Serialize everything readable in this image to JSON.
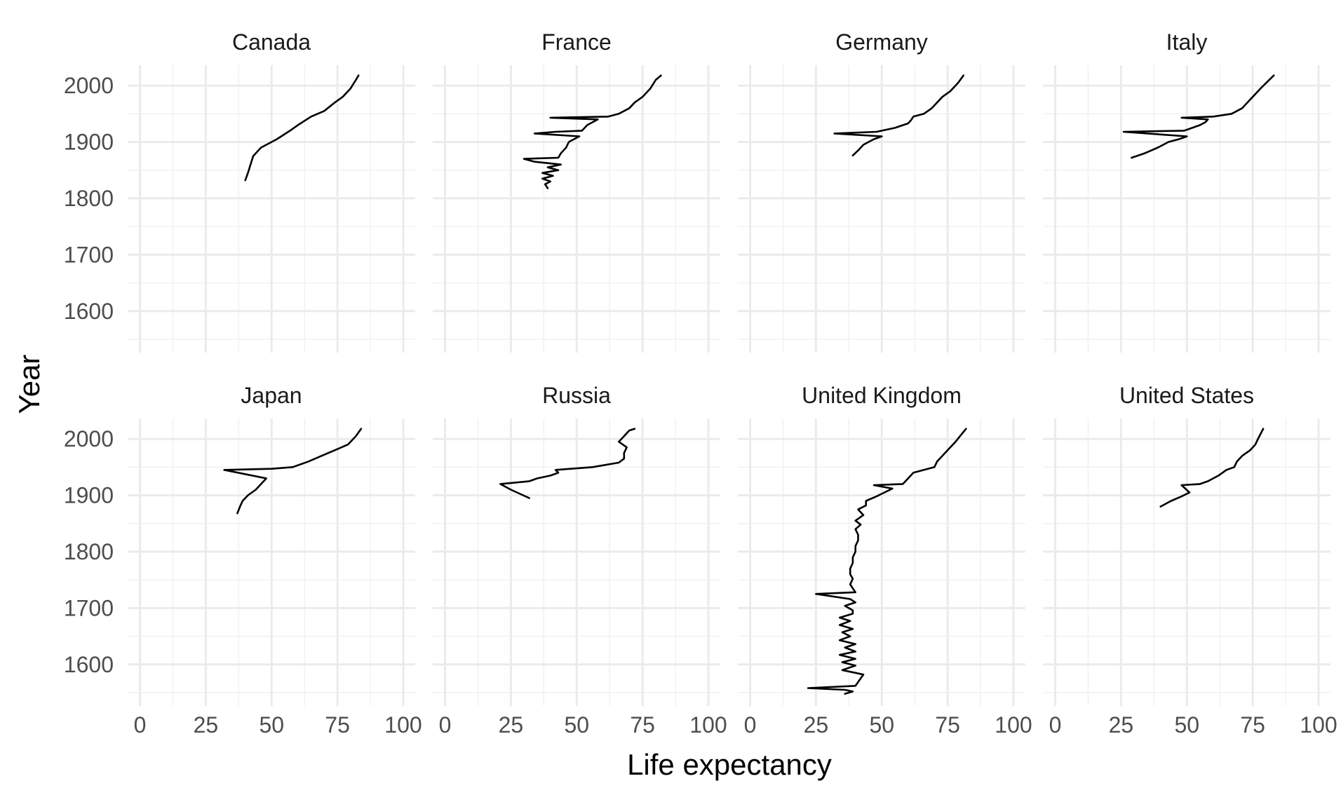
{
  "chart_data": {
    "type": "line",
    "layout": "facet_wrap",
    "xlabel": "Life expectancy",
    "ylabel": "Year",
    "xlim": [
      0,
      100
    ],
    "ylim": [
      1545,
      2020
    ],
    "x_ticks": [
      "0",
      "25",
      "50",
      "75",
      "100"
    ],
    "y_ticks": [
      "1600",
      "1700",
      "1800",
      "1900",
      "2000"
    ],
    "grid": true,
    "line_color": "#000000",
    "panels": [
      {
        "name": "Canada",
        "points": [
          [
            40,
            1832
          ],
          [
            41,
            1845
          ],
          [
            42,
            1860
          ],
          [
            43,
            1875
          ],
          [
            46,
            1890
          ],
          [
            52,
            1905
          ],
          [
            57,
            1920
          ],
          [
            60,
            1930
          ],
          [
            65,
            1945
          ],
          [
            70,
            1955
          ],
          [
            74,
            1970
          ],
          [
            77,
            1980
          ],
          [
            80,
            1995
          ],
          [
            82,
            2010
          ],
          [
            83,
            2018
          ]
        ]
      },
      {
        "name": "France",
        "points": [
          [
            39,
            1818
          ],
          [
            38,
            1825
          ],
          [
            40,
            1830
          ],
          [
            37,
            1835
          ],
          [
            41,
            1840
          ],
          [
            37,
            1845
          ],
          [
            43,
            1850
          ],
          [
            39,
            1855
          ],
          [
            44,
            1860
          ],
          [
            34,
            1865
          ],
          [
            30,
            1870
          ],
          [
            43,
            1872
          ],
          [
            44,
            1880
          ],
          [
            46,
            1890
          ],
          [
            47,
            1900
          ],
          [
            49,
            1905
          ],
          [
            51,
            1910
          ],
          [
            34,
            1915
          ],
          [
            42,
            1918
          ],
          [
            52,
            1920
          ],
          [
            54,
            1930
          ],
          [
            56,
            1935
          ],
          [
            58,
            1940
          ],
          [
            40,
            1943
          ],
          [
            62,
            1945
          ],
          [
            66,
            1950
          ],
          [
            70,
            1960
          ],
          [
            72,
            1970
          ],
          [
            75,
            1980
          ],
          [
            78,
            1995
          ],
          [
            80,
            2010
          ],
          [
            82,
            2018
          ]
        ]
      },
      {
        "name": "Germany",
        "points": [
          [
            39,
            1876
          ],
          [
            41,
            1885
          ],
          [
            43,
            1895
          ],
          [
            47,
            1905
          ],
          [
            50,
            1910
          ],
          [
            32,
            1915
          ],
          [
            48,
            1918
          ],
          [
            55,
            1925
          ],
          [
            60,
            1933
          ],
          [
            61,
            1938
          ],
          [
            62,
            1945
          ],
          [
            66,
            1950
          ],
          [
            69,
            1960
          ],
          [
            71,
            1970
          ],
          [
            73,
            1980
          ],
          [
            76,
            1990
          ],
          [
            79,
            2005
          ],
          [
            81,
            2018
          ]
        ]
      },
      {
        "name": "Italy",
        "points": [
          [
            29,
            1872
          ],
          [
            34,
            1880
          ],
          [
            39,
            1890
          ],
          [
            43,
            1900
          ],
          [
            47,
            1905
          ],
          [
            50,
            1910
          ],
          [
            26,
            1918
          ],
          [
            49,
            1920
          ],
          [
            52,
            1925
          ],
          [
            55,
            1930
          ],
          [
            57,
            1935
          ],
          [
            58,
            1940
          ],
          [
            48,
            1943
          ],
          [
            60,
            1945
          ],
          [
            67,
            1950
          ],
          [
            71,
            1960
          ],
          [
            73,
            1970
          ],
          [
            75,
            1980
          ],
          [
            78,
            1995
          ],
          [
            83,
            2018
          ]
        ]
      },
      {
        "name": "Japan",
        "points": [
          [
            37,
            1868
          ],
          [
            38,
            1880
          ],
          [
            39,
            1890
          ],
          [
            41,
            1900
          ],
          [
            44,
            1910
          ],
          [
            46,
            1920
          ],
          [
            48,
            1930
          ],
          [
            32,
            1945
          ],
          [
            50,
            1947
          ],
          [
            58,
            1950
          ],
          [
            64,
            1960
          ],
          [
            69,
            1970
          ],
          [
            74,
            1980
          ],
          [
            79,
            1990
          ],
          [
            82,
            2005
          ],
          [
            84,
            2018
          ]
        ]
      },
      {
        "name": "Russia",
        "points": [
          [
            32,
            1895
          ],
          [
            25,
            1910
          ],
          [
            21,
            1920
          ],
          [
            32,
            1925
          ],
          [
            35,
            1930
          ],
          [
            40,
            1935
          ],
          [
            43,
            1940
          ],
          [
            42,
            1945
          ],
          [
            56,
            1950
          ],
          [
            66,
            1958
          ],
          [
            68,
            1965
          ],
          [
            68,
            1975
          ],
          [
            69,
            1985
          ],
          [
            66,
            1995
          ],
          [
            68,
            2005
          ],
          [
            70,
            2015
          ],
          [
            72,
            2018
          ]
        ]
      },
      {
        "name": "United Kingdom",
        "points": [
          [
            36,
            1548
          ],
          [
            39,
            1552
          ],
          [
            36,
            1555
          ],
          [
            22,
            1558
          ],
          [
            40,
            1562
          ],
          [
            43,
            1582
          ],
          [
            35,
            1590
          ],
          [
            40,
            1598
          ],
          [
            35,
            1604
          ],
          [
            40,
            1610
          ],
          [
            34,
            1617
          ],
          [
            40,
            1623
          ],
          [
            36,
            1630
          ],
          [
            40,
            1636
          ],
          [
            34,
            1643
          ],
          [
            38,
            1650
          ],
          [
            35,
            1657
          ],
          [
            39,
            1663
          ],
          [
            34,
            1670
          ],
          [
            38,
            1677
          ],
          [
            34,
            1683
          ],
          [
            39,
            1690
          ],
          [
            39,
            1696
          ],
          [
            36,
            1704
          ],
          [
            40,
            1710
          ],
          [
            38,
            1716
          ],
          [
            25,
            1725
          ],
          [
            40,
            1728
          ],
          [
            39,
            1735
          ],
          [
            38,
            1742
          ],
          [
            39,
            1752
          ],
          [
            38,
            1760
          ],
          [
            38,
            1770
          ],
          [
            39,
            1780
          ],
          [
            39,
            1790
          ],
          [
            40,
            1800
          ],
          [
            40,
            1810
          ],
          [
            41,
            1820
          ],
          [
            41,
            1830
          ],
          [
            40,
            1840
          ],
          [
            42,
            1848
          ],
          [
            40,
            1855
          ],
          [
            43,
            1865
          ],
          [
            41,
            1875
          ],
          [
            44,
            1882
          ],
          [
            44,
            1890
          ],
          [
            48,
            1898
          ],
          [
            51,
            1905
          ],
          [
            54,
            1912
          ],
          [
            47,
            1918
          ],
          [
            58,
            1920
          ],
          [
            60,
            1930
          ],
          [
            62,
            1940
          ],
          [
            70,
            1950
          ],
          [
            71,
            1960
          ],
          [
            73,
            1970
          ],
          [
            75,
            1980
          ],
          [
            78,
            1995
          ],
          [
            82,
            2018
          ]
        ]
      },
      {
        "name": "United States",
        "points": [
          [
            40,
            1880
          ],
          [
            44,
            1890
          ],
          [
            48,
            1898
          ],
          [
            51,
            1905
          ],
          [
            48,
            1918
          ],
          [
            55,
            1920
          ],
          [
            58,
            1925
          ],
          [
            60,
            1930
          ],
          [
            62,
            1935
          ],
          [
            65,
            1945
          ],
          [
            68,
            1950
          ],
          [
            69,
            1960
          ],
          [
            71,
            1970
          ],
          [
            74,
            1980
          ],
          [
            76,
            1990
          ],
          [
            77,
            2000
          ],
          [
            79,
            2018
          ]
        ]
      }
    ]
  }
}
